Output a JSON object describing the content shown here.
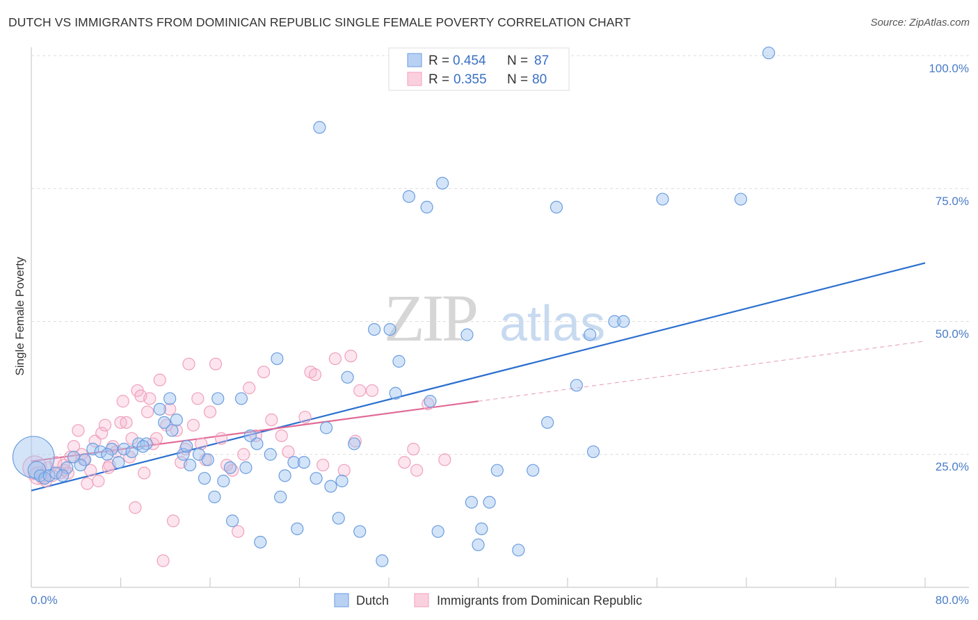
{
  "header": {
    "title": "DUTCH VS IMMIGRANTS FROM DOMINICAN REPUBLIC SINGLE FEMALE POVERTY CORRELATION CHART",
    "source": "Source: ZipAtlas.com"
  },
  "watermark": {
    "zip": "ZIP",
    "atlas": "atlas"
  },
  "legend": {
    "rows": [
      {
        "r_label": "R = ",
        "r_value": "0.454",
        "n_label": "N = ",
        "n_value": "87"
      },
      {
        "r_label": "R = ",
        "r_value": "0.355",
        "n_label": "N = ",
        "n_value": "80"
      }
    ]
  },
  "bottom_legend": {
    "dutch": "Dutch",
    "dominican": "Immigrants from Dominican Republic"
  },
  "chart_data": {
    "type": "scatter",
    "title": "DUTCH VS IMMIGRANTS FROM DOMINICAN REPUBLIC SINGLE FEMALE POVERTY CORRELATION CHART",
    "xlabel": "",
    "ylabel": "Single Female Poverty",
    "xlim": [
      0,
      80
    ],
    "ylim": [
      0,
      100
    ],
    "x_tick_labels": [
      "0.0%",
      "80.0%"
    ],
    "y_ticks": [
      25,
      50,
      75,
      100
    ],
    "y_tick_labels": [
      "25.0%",
      "50.0%",
      "75.0%",
      "100.0%"
    ],
    "grid": "horizontal dashed",
    "colors": {
      "dutch": "#6a9de0",
      "dutch_line": "#2a6fcf",
      "dominican": "#f0a0bb",
      "dominican_line": "#e06a96"
    },
    "series": [
      {
        "name": "Dutch",
        "r": 0.454,
        "n": 87,
        "trend": {
          "x": [
            0,
            80
          ],
          "y": [
            18.2,
            61.0
          ],
          "style": "solid"
        },
        "points": [
          [
            0.2,
            24.5,
            3.5
          ],
          [
            0.5,
            22,
            1.5
          ],
          [
            0.8,
            21,
            1
          ],
          [
            1.2,
            20.5,
            1
          ],
          [
            1.6,
            21,
            1
          ],
          [
            2.2,
            21.5,
            1
          ],
          [
            3.2,
            22.5,
            1
          ],
          [
            3.8,
            24.5,
            1
          ],
          [
            4.8,
            24,
            1
          ],
          [
            5.5,
            26,
            1
          ],
          [
            6.2,
            25.5,
            1
          ],
          [
            7.2,
            26,
            1
          ],
          [
            7.8,
            23.5,
            1
          ],
          [
            8.3,
            26,
            1
          ],
          [
            9.0,
            25.5,
            1
          ],
          [
            9.6,
            27,
            1
          ],
          [
            10.3,
            27,
            1
          ],
          [
            11.5,
            33.5,
            1
          ],
          [
            11.9,
            31,
            1
          ],
          [
            12.4,
            35.5,
            1
          ],
          [
            13.0,
            31.5,
            1
          ],
          [
            13.6,
            25,
            1
          ],
          [
            13.9,
            26.5,
            1
          ],
          [
            14.2,
            23,
            1
          ],
          [
            15.0,
            25,
            1
          ],
          [
            15.5,
            20.5,
            1
          ],
          [
            15.8,
            24,
            1
          ],
          [
            16.4,
            17,
            1
          ],
          [
            16.7,
            35.5,
            1
          ],
          [
            17.2,
            20,
            1
          ],
          [
            17.8,
            22.5,
            1
          ],
          [
            18.0,
            12.5,
            1
          ],
          [
            18.8,
            35.5,
            1
          ],
          [
            19.2,
            22.5,
            1
          ],
          [
            19.6,
            28.5,
            1
          ],
          [
            20.2,
            27,
            1
          ],
          [
            20.5,
            8.5,
            1
          ],
          [
            21.4,
            25,
            1
          ],
          [
            22.0,
            43,
            1
          ],
          [
            22.3,
            17,
            1
          ],
          [
            22.7,
            21,
            1
          ],
          [
            23.5,
            23.5,
            1
          ],
          [
            23.8,
            11,
            1
          ],
          [
            24.4,
            23.5,
            1
          ],
          [
            25.5,
            20.5,
            1
          ],
          [
            25.8,
            86.5,
            1
          ],
          [
            26.4,
            30,
            1
          ],
          [
            26.8,
            19,
            1
          ],
          [
            27.5,
            13,
            1
          ],
          [
            27.8,
            20,
            1
          ],
          [
            28.3,
            39.5,
            1
          ],
          [
            28.9,
            27,
            1
          ],
          [
            29.4,
            10.5,
            1
          ],
          [
            30.7,
            48.5,
            1
          ],
          [
            31.4,
            5,
            1
          ],
          [
            32.1,
            48.5,
            1
          ],
          [
            32.6,
            36.5,
            1
          ],
          [
            32.9,
            42.5,
            1
          ],
          [
            33.8,
            73.5,
            1
          ],
          [
            35.4,
            71.5,
            1
          ],
          [
            35.7,
            35,
            1
          ],
          [
            36.4,
            10.5,
            1
          ],
          [
            36.8,
            76,
            1
          ],
          [
            39.0,
            47.5,
            1
          ],
          [
            39.4,
            16,
            1
          ],
          [
            40.0,
            8,
            1
          ],
          [
            40.3,
            11,
            1
          ],
          [
            41.0,
            16,
            1
          ],
          [
            41.7,
            22,
            1
          ],
          [
            43.6,
            7,
            1
          ],
          [
            44.9,
            22,
            1
          ],
          [
            46.2,
            31,
            1
          ],
          [
            47.0,
            71.5,
            1
          ],
          [
            48.8,
            38,
            1
          ],
          [
            50.0,
            47.5,
            1
          ],
          [
            50.3,
            25.5,
            1
          ],
          [
            52.2,
            50,
            1
          ],
          [
            53.0,
            50,
            1
          ],
          [
            56.5,
            73,
            1
          ],
          [
            63.5,
            73,
            1
          ],
          [
            66.0,
            100.5,
            1
          ],
          [
            23.7,
            15,
            0
          ],
          [
            10.0,
            26.5,
            1
          ],
          [
            12.6,
            29.5,
            1
          ],
          [
            2.8,
            21,
            1
          ],
          [
            4.4,
            23,
            1
          ],
          [
            6.8,
            25,
            1
          ]
        ]
      },
      {
        "name": "Immigrants from Dominican Republic",
        "r": 0.355,
        "n": 80,
        "trend": {
          "x": [
            0,
            40
          ],
          "y": [
            23.7,
            35.0
          ],
          "style": "solid",
          "extension": {
            "x": [
              40,
              80
            ],
            "y": [
              35.0,
              46.3
            ],
            "style": "dashed"
          }
        },
        "points": [
          [
            0.3,
            22.5,
            2.0
          ],
          [
            0.6,
            21,
            1.5
          ],
          [
            1.0,
            20.5,
            1
          ],
          [
            1.5,
            22.5,
            1
          ],
          [
            1.9,
            21,
            1
          ],
          [
            2.2,
            23.5,
            1
          ],
          [
            2.6,
            21.5,
            1
          ],
          [
            3.0,
            22,
            1
          ],
          [
            3.5,
            24.5,
            1
          ],
          [
            3.8,
            26.5,
            1
          ],
          [
            4.2,
            29.5,
            1
          ],
          [
            4.5,
            25,
            1
          ],
          [
            5.0,
            19.5,
            1
          ],
          [
            5.3,
            22,
            1
          ],
          [
            5.7,
            27.5,
            1
          ],
          [
            6.0,
            20,
            1
          ],
          [
            6.3,
            29,
            1
          ],
          [
            6.6,
            30.5,
            1
          ],
          [
            7.0,
            23,
            1
          ],
          [
            7.3,
            26.5,
            1
          ],
          [
            7.6,
            25.5,
            1
          ],
          [
            8.0,
            31,
            1
          ],
          [
            8.2,
            35,
            1
          ],
          [
            8.5,
            31,
            1
          ],
          [
            8.8,
            24.5,
            1
          ],
          [
            9.0,
            28,
            1
          ],
          [
            9.3,
            15,
            1
          ],
          [
            9.5,
            37,
            1
          ],
          [
            9.8,
            36,
            1
          ],
          [
            10.1,
            21.5,
            1
          ],
          [
            10.4,
            33,
            1
          ],
          [
            10.6,
            35.5,
            1
          ],
          [
            10.9,
            27,
            1
          ],
          [
            11.2,
            28,
            1
          ],
          [
            11.5,
            39,
            1
          ],
          [
            11.8,
            5,
            1
          ],
          [
            12.1,
            30.5,
            1
          ],
          [
            12.4,
            33.5,
            1
          ],
          [
            12.7,
            12.5,
            1
          ],
          [
            13.0,
            29.5,
            1
          ],
          [
            13.4,
            23.5,
            1
          ],
          [
            13.8,
            26,
            1
          ],
          [
            14.1,
            42,
            1
          ],
          [
            14.5,
            30.5,
            1
          ],
          [
            14.9,
            35.5,
            1
          ],
          [
            15.2,
            27,
            1
          ],
          [
            15.6,
            24,
            1
          ],
          [
            16.0,
            33,
            1
          ],
          [
            16.5,
            42,
            1
          ],
          [
            17.0,
            28,
            1
          ],
          [
            17.5,
            23,
            1
          ],
          [
            18.0,
            22,
            1
          ],
          [
            18.5,
            10.5,
            1
          ],
          [
            19.0,
            25,
            1
          ],
          [
            19.5,
            37.5,
            1
          ],
          [
            20.1,
            28.5,
            1
          ],
          [
            20.8,
            40.5,
            1
          ],
          [
            21.5,
            31.5,
            1
          ],
          [
            22.4,
            28.5,
            1
          ],
          [
            23.0,
            25.5,
            1
          ],
          [
            24.5,
            32,
            1
          ],
          [
            25.0,
            40.5,
            1
          ],
          [
            25.4,
            40,
            1
          ],
          [
            26.1,
            23,
            1
          ],
          [
            27.2,
            43,
            1
          ],
          [
            28.0,
            22,
            1
          ],
          [
            28.6,
            43.5,
            1
          ],
          [
            29.0,
            27.5,
            1
          ],
          [
            29.4,
            37,
            1
          ],
          [
            30.5,
            37,
            1
          ],
          [
            33.4,
            23.5,
            1
          ],
          [
            34.2,
            26,
            1
          ],
          [
            34.5,
            22,
            1
          ],
          [
            35.5,
            34.5,
            1
          ],
          [
            37.0,
            24,
            1
          ],
          [
            1.3,
            20,
            1
          ],
          [
            2.9,
            23,
            1
          ],
          [
            4.7,
            24,
            1
          ],
          [
            6.9,
            22.5,
            1
          ],
          [
            3.3,
            21.5,
            1
          ]
        ]
      }
    ]
  }
}
